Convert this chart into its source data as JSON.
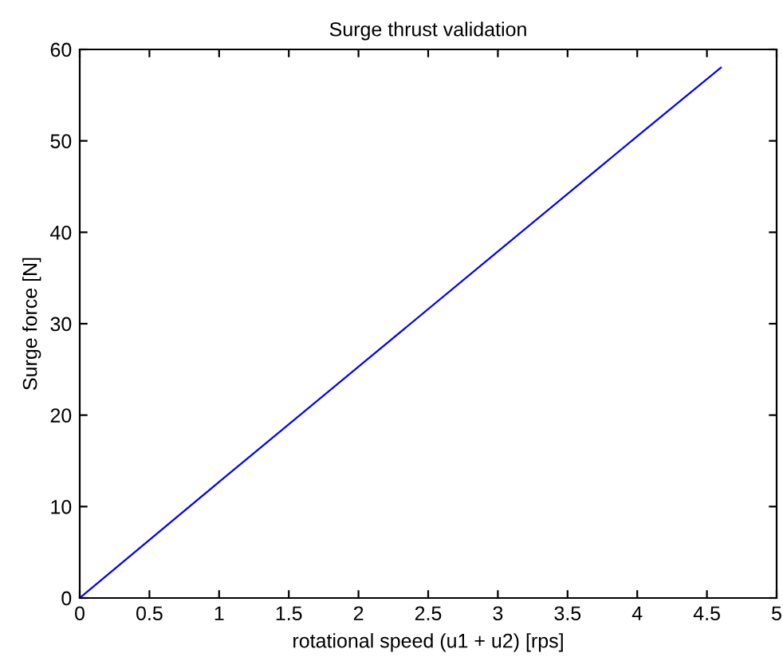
{
  "chart_data": {
    "type": "line",
    "title": "Surge thrust validation",
    "xlabel": "rotational speed (u1 + u2) [rps]",
    "ylabel": "Surge force [N]",
    "x": [
      0,
      1,
      2,
      3,
      4,
      4.6
    ],
    "series": [
      {
        "color": "#0000ff",
        "values": [
          0,
          12.7,
          25.3,
          37.9,
          50.5,
          58.0
        ]
      }
    ],
    "xlim": [
      0,
      5
    ],
    "ylim": [
      0,
      60
    ],
    "xticks": [
      0,
      0.5,
      1,
      1.5,
      2,
      2.5,
      3,
      3.5,
      4,
      4.5,
      5
    ],
    "yticks": [
      0,
      10,
      20,
      30,
      40,
      50,
      60
    ],
    "grid": false,
    "legend": false
  }
}
